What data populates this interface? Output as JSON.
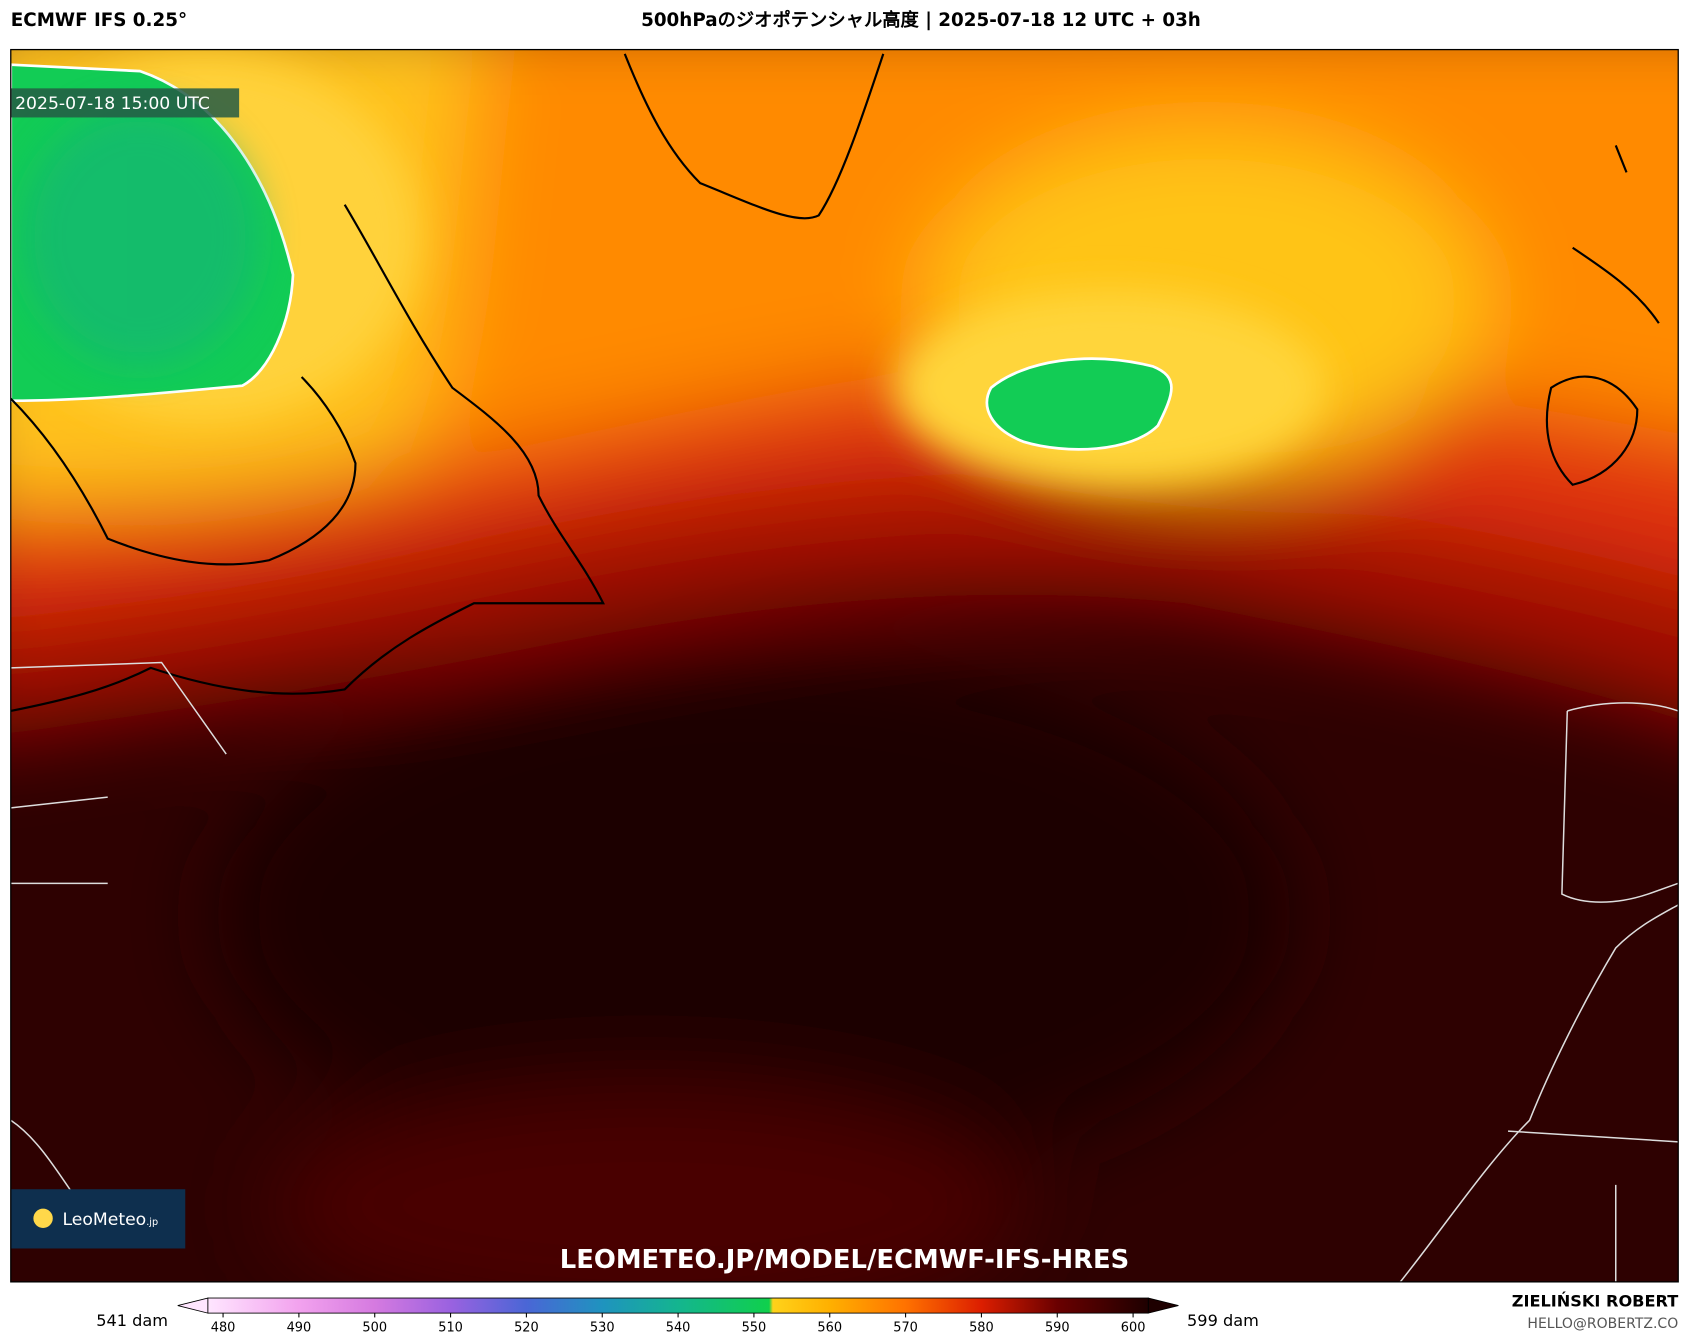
{
  "header": {
    "left": "ECMWF IFS 0.25°",
    "title": "500hPaのジオポテンシャル高度 | 2025-07-18 12 UTC + 03h"
  },
  "map": {
    "timestamp": "2025-07-18 15:00 UTC",
    "logo": "LeoMeteo",
    "logo_suffix": ".jp",
    "watermark": "LEOMETEO.JP/MODEL/ECMWF-IFS-HRES"
  },
  "colorbar": {
    "min_label": "541 dam",
    "max_label": "599 dam",
    "range": [
      478,
      602
    ],
    "ticks": [
      480,
      490,
      500,
      510,
      520,
      530,
      540,
      550,
      560,
      570,
      580,
      590,
      600
    ],
    "stops": [
      {
        "value": 478,
        "color": "#ffe6ff"
      },
      {
        "value": 490,
        "color": "#f2a2ee"
      },
      {
        "value": 500,
        "color": "#d57ae0"
      },
      {
        "value": 510,
        "color": "#9a62e0"
      },
      {
        "value": 520,
        "color": "#4a66d6"
      },
      {
        "value": 530,
        "color": "#1f93bf"
      },
      {
        "value": 540,
        "color": "#14b58f"
      },
      {
        "value": 552,
        "color": "#10d04c"
      },
      {
        "value": 552.5,
        "color": "#ffd21a"
      },
      {
        "value": 560,
        "color": "#ffb000"
      },
      {
        "value": 570,
        "color": "#ff7200"
      },
      {
        "value": 580,
        "color": "#dc1e00"
      },
      {
        "value": 590,
        "color": "#6a0000"
      },
      {
        "value": 602,
        "color": "#1e0000"
      }
    ]
  },
  "footer": {
    "author": "ZIELIŃSKI ROBERT",
    "email": "HELLO@ROBERTZ.CO"
  }
}
